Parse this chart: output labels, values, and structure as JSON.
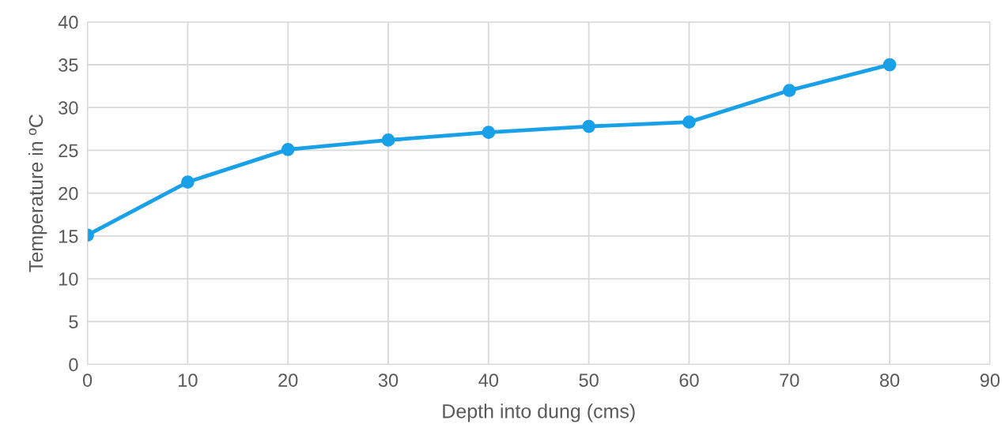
{
  "chart_data": {
    "type": "line",
    "xlabel": "Depth into dung (cms)",
    "ylabel": "Temperature in ºC",
    "x": [
      0,
      10,
      20,
      30,
      40,
      50,
      60,
      70,
      80
    ],
    "series": [
      {
        "color": "#18a0e8",
        "values": [
          15.1,
          21.3,
          25.1,
          26.2,
          27.1,
          27.8,
          28.3,
          32.0,
          35.0
        ]
      }
    ],
    "xlim": [
      0,
      90
    ],
    "xticks": [
      0,
      10,
      20,
      30,
      40,
      50,
      60,
      70,
      80,
      90
    ],
    "ylim": [
      0,
      40
    ],
    "yticks": [
      0,
      5,
      10,
      15,
      20,
      25,
      30,
      35,
      40
    ],
    "grid": true,
    "marker": "circle",
    "line_style": "solid",
    "legend": false
  }
}
